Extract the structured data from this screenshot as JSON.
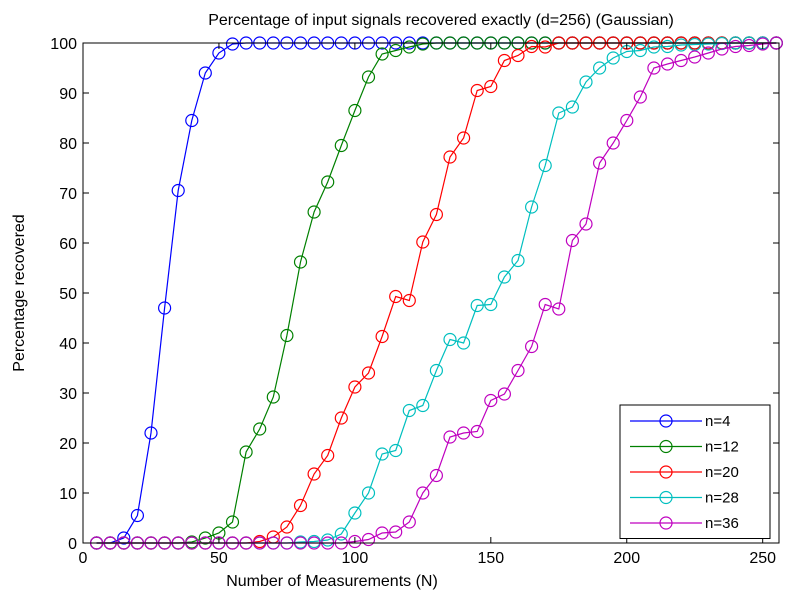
{
  "chart_data": {
    "type": "line",
    "title": "Percentage of input signals recovered exactly (d=256) (Gaussian)",
    "xlabel": "Number of Measurements (N)",
    "ylabel": "Percentage recovered",
    "xlim": [
      0,
      256
    ],
    "ylim": [
      0,
      100
    ],
    "xticks": [
      0,
      50,
      100,
      150,
      200,
      250
    ],
    "yticks": [
      0,
      10,
      20,
      30,
      40,
      50,
      60,
      70,
      80,
      90,
      100
    ],
    "grid": false,
    "legend_position": "bottom-right",
    "x": [
      5,
      10,
      15,
      20,
      25,
      30,
      35,
      40,
      45,
      50,
      55,
      60,
      65,
      70,
      75,
      80,
      85,
      90,
      95,
      100,
      105,
      110,
      115,
      120,
      125,
      130,
      135,
      140,
      145,
      150,
      155,
      160,
      165,
      170,
      175,
      180,
      185,
      190,
      195,
      200,
      205,
      210,
      215,
      220,
      225,
      230,
      235,
      240,
      245,
      250,
      255
    ],
    "series": [
      {
        "name": "n=4",
        "color": "#0000ff",
        "values": [
          0,
          0,
          1,
          5.5,
          22,
          47,
          70.5,
          84.5,
          94,
          98,
          99.8,
          100,
          100,
          100,
          100,
          100,
          100,
          100,
          100,
          100,
          100,
          100,
          100,
          100,
          100,
          100,
          100,
          100,
          100,
          100,
          100,
          100,
          100,
          100,
          100,
          100,
          100,
          100,
          100,
          100,
          100,
          100,
          100,
          100,
          100,
          100,
          100,
          100,
          100,
          100,
          100
        ]
      },
      {
        "name": "n=12",
        "color": "#008000",
        "values": [
          0,
          0,
          0,
          0,
          0,
          0,
          0,
          0.2,
          1,
          2,
          4.2,
          18.2,
          22.8,
          29.2,
          41.5,
          56.2,
          66.2,
          72.2,
          79.5,
          86.5,
          93.2,
          97.8,
          98.5,
          99.2,
          99.8,
          100,
          100,
          100,
          100,
          100,
          100,
          100,
          100,
          100,
          100,
          100,
          100,
          100,
          100,
          100,
          100,
          100,
          100,
          100,
          100,
          100,
          100,
          100,
          100,
          100,
          100
        ]
      },
      {
        "name": "n=20",
        "color": "#ff0000",
        "values": [
          0,
          0,
          0,
          0,
          0,
          0,
          0,
          0,
          0,
          0,
          0,
          0,
          0.3,
          1.2,
          3.2,
          7.5,
          13.8,
          17.5,
          25,
          31.2,
          34,
          41.3,
          49.3,
          48.5,
          60.2,
          65.7,
          77.2,
          81,
          90.5,
          91.3,
          96.5,
          97.5,
          99.3,
          99.2,
          100,
          100,
          100,
          100,
          100,
          100,
          100,
          100,
          100,
          100,
          100,
          100,
          100,
          100,
          100,
          100,
          100
        ]
      },
      {
        "name": "n=28",
        "color": "#00bfbf",
        "values": [
          0,
          0,
          0,
          0,
          0,
          0,
          0,
          0,
          0,
          0,
          0,
          0,
          0,
          0,
          0,
          0.2,
          0.3,
          0.6,
          1.8,
          6,
          10,
          17.8,
          18.5,
          26.5,
          27.5,
          34.5,
          40.7,
          40,
          47.5,
          47.7,
          53.2,
          56.5,
          67.2,
          75.5,
          86,
          87.2,
          92.2,
          95,
          97,
          98.3,
          98.5,
          99.2,
          99.3,
          99.6,
          99.7,
          99.8,
          99.9,
          100,
          100,
          100,
          100
        ]
      },
      {
        "name": "n=36",
        "color": "#bf00bf",
        "values": [
          0,
          0,
          0,
          0,
          0,
          0,
          0,
          0,
          0,
          0,
          0,
          0,
          0,
          0,
          0,
          0,
          0,
          0,
          0,
          0.3,
          0.7,
          2,
          2.2,
          4.2,
          10,
          13.5,
          21.2,
          22,
          22.3,
          28.5,
          29.8,
          34.5,
          39.3,
          47.7,
          46.8,
          60.5,
          63.8,
          76,
          80,
          84.5,
          89.2,
          95,
          95.8,
          96.5,
          97.2,
          98,
          98.8,
          99.3,
          99.5,
          99.8,
          100
        ]
      }
    ]
  }
}
